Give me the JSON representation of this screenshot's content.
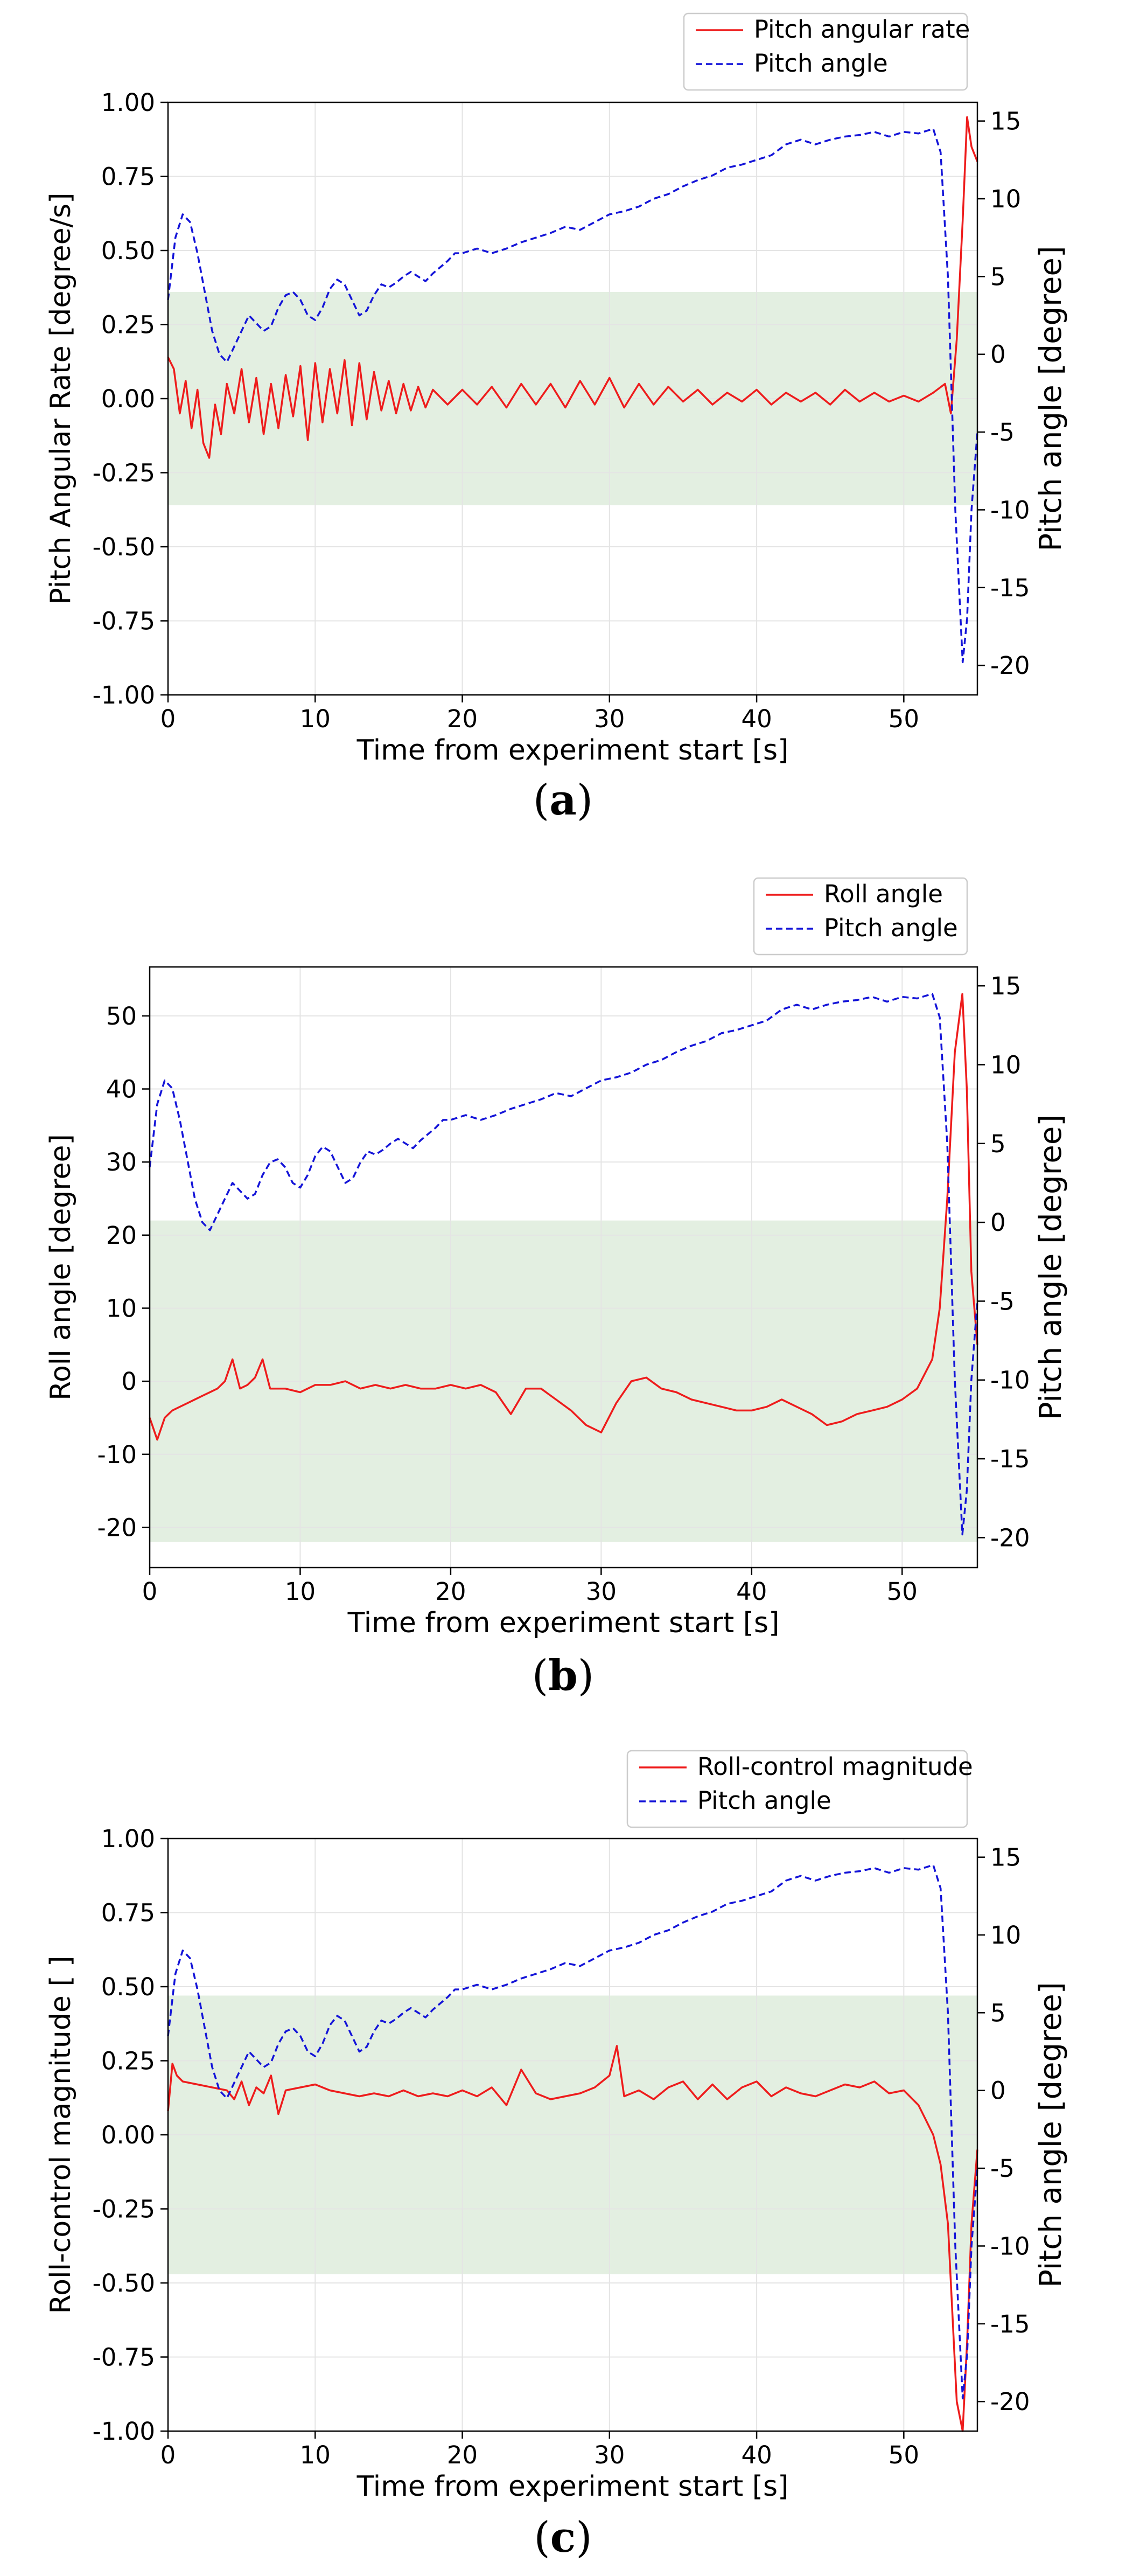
{
  "figure": {
    "captions": [
      {
        "open": "(",
        "letter": "a",
        "close": ")"
      },
      {
        "open": "(",
        "letter": "b",
        "close": ")"
      },
      {
        "open": "(",
        "letter": "c",
        "close": ")"
      }
    ]
  },
  "colors": {
    "primary": "#ee1c1c",
    "pitch": "#1414d8",
    "band": "#e3efe1",
    "grid": "#e4e4e4"
  },
  "chart_data": [
    {
      "type": "line",
      "xlabel": "Time from experiment start [s]",
      "ylabel": "Pitch Angular Rate [degree/s]",
      "y2label": "Pitch angle [degree]",
      "xlim": [
        0,
        55
      ],
      "ylim": [
        -1.0,
        1.0
      ],
      "y2lim": [
        -21.9,
        16.2
      ],
      "xticks": [
        0,
        10,
        20,
        30,
        40,
        50
      ],
      "yticks": [
        -1.0,
        -0.75,
        -0.5,
        -0.25,
        0.0,
        0.25,
        0.5,
        0.75,
        1.0
      ],
      "y2ticks": [
        -20,
        -15,
        -10,
        -5,
        0,
        5,
        10,
        15
      ],
      "tick_decimals": 2,
      "band": [
        -0.36,
        0.36
      ],
      "legend": [
        "Pitch angular rate",
        "Pitch angle"
      ],
      "legend_position": "top-right",
      "primary_series": {
        "name": "Pitch angular rate",
        "x": [
          0,
          0.4,
          0.8,
          1.2,
          1.6,
          2.0,
          2.4,
          2.8,
          3.2,
          3.6,
          4.0,
          4.5,
          5.0,
          5.5,
          6.0,
          6.5,
          7.0,
          7.5,
          8.0,
          8.5,
          9.0,
          9.5,
          10.0,
          10.5,
          11.0,
          11.5,
          12.0,
          12.5,
          13.0,
          13.5,
          14.0,
          14.5,
          15.0,
          15.5,
          16.0,
          16.5,
          17.0,
          17.5,
          18.0,
          19.0,
          20.0,
          21.0,
          22.0,
          23.0,
          24.0,
          25.0,
          26.0,
          27.0,
          28.0,
          29.0,
          30.0,
          31.0,
          32.0,
          33.0,
          34.0,
          35.0,
          36.0,
          37.0,
          38.0,
          39.0,
          40.0,
          41.0,
          42.0,
          43.0,
          44.0,
          45.0,
          46.0,
          47.0,
          48.0,
          49.0,
          50.0,
          51.0,
          52.0,
          52.8,
          53.2,
          53.6,
          54.0,
          54.3,
          54.6,
          55.0
        ],
        "y": [
          0.14,
          0.1,
          -0.05,
          0.06,
          -0.1,
          0.03,
          -0.15,
          -0.2,
          -0.02,
          -0.12,
          0.05,
          -0.05,
          0.1,
          -0.08,
          0.07,
          -0.12,
          0.05,
          -0.1,
          0.08,
          -0.06,
          0.11,
          -0.14,
          0.12,
          -0.08,
          0.1,
          -0.05,
          0.13,
          -0.09,
          0.12,
          -0.07,
          0.09,
          -0.04,
          0.06,
          -0.05,
          0.05,
          -0.04,
          0.04,
          -0.03,
          0.03,
          -0.02,
          0.03,
          -0.02,
          0.04,
          -0.03,
          0.05,
          -0.02,
          0.05,
          -0.03,
          0.06,
          -0.02,
          0.07,
          -0.03,
          0.05,
          -0.02,
          0.04,
          -0.01,
          0.03,
          -0.02,
          0.02,
          -0.01,
          0.03,
          -0.02,
          0.02,
          -0.01,
          0.02,
          -0.02,
          0.03,
          -0.01,
          0.02,
          -0.01,
          0.01,
          -0.01,
          0.02,
          0.05,
          -0.05,
          0.2,
          0.6,
          0.95,
          0.85,
          0.8
        ]
      },
      "pitch_series": {
        "name": "Pitch angle",
        "x": [
          0,
          0.5,
          1.0,
          1.5,
          2.0,
          2.5,
          3.0,
          3.5,
          4.0,
          4.5,
          5.0,
          5.5,
          6.0,
          6.5,
          7.0,
          7.5,
          8.0,
          8.5,
          9.0,
          9.5,
          10.0,
          10.5,
          11.0,
          11.5,
          12.0,
          12.5,
          13.0,
          13.5,
          14.0,
          14.5,
          15.0,
          15.5,
          16.0,
          16.5,
          17.0,
          17.5,
          18.0,
          18.5,
          19.0,
          19.5,
          20.0,
          21.0,
          22.0,
          23.0,
          24.0,
          25.0,
          26.0,
          27.0,
          28.0,
          29.0,
          30.0,
          31.0,
          32.0,
          33.0,
          34.0,
          35.0,
          36.0,
          37.0,
          38.0,
          39.0,
          40.0,
          41.0,
          42.0,
          43.0,
          44.0,
          45.0,
          46.0,
          47.0,
          48.0,
          49.0,
          50.0,
          51.0,
          52.0,
          52.5,
          53.0,
          53.5,
          54.0,
          54.3,
          54.6,
          55.0
        ],
        "y": [
          3.5,
          7.5,
          9.0,
          8.5,
          6.5,
          4.0,
          1.5,
          0.0,
          -0.5,
          0.5,
          1.5,
          2.5,
          2.0,
          1.5,
          1.8,
          3.0,
          3.8,
          4.0,
          3.5,
          2.5,
          2.2,
          3.0,
          4.2,
          4.8,
          4.5,
          3.5,
          2.5,
          2.8,
          3.8,
          4.5,
          4.3,
          4.6,
          5.0,
          5.3,
          5.0,
          4.7,
          5.2,
          5.6,
          6.0,
          6.5,
          6.5,
          6.8,
          6.5,
          6.8,
          7.2,
          7.5,
          7.8,
          8.2,
          8.0,
          8.5,
          9.0,
          9.2,
          9.5,
          10.0,
          10.3,
          10.8,
          11.2,
          11.5,
          12.0,
          12.2,
          12.5,
          12.8,
          13.5,
          13.8,
          13.5,
          13.8,
          14.0,
          14.1,
          14.3,
          14.0,
          14.3,
          14.2,
          14.5,
          13.0,
          5.0,
          -10.0,
          -19.8,
          -17.0,
          -10.0,
          -5.0
        ]
      }
    },
    {
      "type": "line",
      "xlabel": "Time from experiment start [s]",
      "ylabel": "Roll angle [degree]",
      "y2label": "Pitch angle [degree]",
      "xlim": [
        0,
        55
      ],
      "ylim": [
        -25.5,
        56.7
      ],
      "y2lim": [
        -21.9,
        16.2
      ],
      "xticks": [
        0,
        10,
        20,
        30,
        40,
        50
      ],
      "yticks": [
        -20,
        -10,
        0,
        10,
        20,
        30,
        40,
        50
      ],
      "y2ticks": [
        -20,
        -15,
        -10,
        -5,
        0,
        5,
        10,
        15
      ],
      "tick_decimals": 0,
      "band": [
        -22,
        22
      ],
      "legend": [
        "Roll angle",
        "Pitch angle"
      ],
      "legend_position": "top-right",
      "primary_series": {
        "name": "Roll angle",
        "x": [
          0,
          0.5,
          1.0,
          1.5,
          2.0,
          2.5,
          3.0,
          3.5,
          4.0,
          4.5,
          5.0,
          5.5,
          6.0,
          6.5,
          7.0,
          7.5,
          8.0,
          9.0,
          10.0,
          11.0,
          12.0,
          13.0,
          14.0,
          15.0,
          16.0,
          17.0,
          18.0,
          19.0,
          20.0,
          21.0,
          22.0,
          23.0,
          24.0,
          25.0,
          26.0,
          27.0,
          28.0,
          29.0,
          30.0,
          31.0,
          32.0,
          33.0,
          34.0,
          35.0,
          36.0,
          37.0,
          38.0,
          39.0,
          40.0,
          41.0,
          42.0,
          43.0,
          44.0,
          45.0,
          46.0,
          47.0,
          48.0,
          49.0,
          50.0,
          51.0,
          52.0,
          52.5,
          53.0,
          53.5,
          54.0,
          54.3,
          54.6,
          55.0
        ],
        "y": [
          -5.0,
          -8.0,
          -5.0,
          -4.0,
          -3.5,
          -3.0,
          -2.5,
          -2.0,
          -1.5,
          -1.0,
          0.0,
          3.0,
          -1.0,
          -0.5,
          0.5,
          3.0,
          -1.0,
          -1.0,
          -1.5,
          -0.5,
          -0.5,
          0.0,
          -1.0,
          -0.5,
          -1.0,
          -0.5,
          -1.0,
          -1.0,
          -0.5,
          -1.0,
          -0.5,
          -1.5,
          -4.5,
          -1.0,
          -1.0,
          -2.5,
          -4.0,
          -6.0,
          -7.0,
          -3.0,
          0.0,
          0.5,
          -1.0,
          -1.5,
          -2.5,
          -3.0,
          -3.5,
          -4.0,
          -4.0,
          -3.5,
          -2.5,
          -3.5,
          -4.5,
          -6.0,
          -5.5,
          -4.5,
          -4.0,
          -3.5,
          -2.5,
          -1.0,
          3.0,
          10.0,
          25.0,
          45.0,
          53.0,
          40.0,
          15.0,
          5.0
        ]
      },
      "pitch_series": {
        "name": "Pitch angle",
        "x": [
          0,
          0.5,
          1.0,
          1.5,
          2.0,
          2.5,
          3.0,
          3.5,
          4.0,
          4.5,
          5.0,
          5.5,
          6.0,
          6.5,
          7.0,
          7.5,
          8.0,
          8.5,
          9.0,
          9.5,
          10.0,
          10.5,
          11.0,
          11.5,
          12.0,
          12.5,
          13.0,
          13.5,
          14.0,
          14.5,
          15.0,
          15.5,
          16.0,
          16.5,
          17.0,
          17.5,
          18.0,
          18.5,
          19.0,
          19.5,
          20.0,
          21.0,
          22.0,
          23.0,
          24.0,
          25.0,
          26.0,
          27.0,
          28.0,
          29.0,
          30.0,
          31.0,
          32.0,
          33.0,
          34.0,
          35.0,
          36.0,
          37.0,
          38.0,
          39.0,
          40.0,
          41.0,
          42.0,
          43.0,
          44.0,
          45.0,
          46.0,
          47.0,
          48.0,
          49.0,
          50.0,
          51.0,
          52.0,
          52.5,
          53.0,
          53.5,
          54.0,
          54.3,
          54.6,
          55.0
        ],
        "y": [
          3.5,
          7.5,
          9.0,
          8.5,
          6.5,
          4.0,
          1.5,
          0.0,
          -0.5,
          0.5,
          1.5,
          2.5,
          2.0,
          1.5,
          1.8,
          3.0,
          3.8,
          4.0,
          3.5,
          2.5,
          2.2,
          3.0,
          4.2,
          4.8,
          4.5,
          3.5,
          2.5,
          2.8,
          3.8,
          4.5,
          4.3,
          4.6,
          5.0,
          5.3,
          5.0,
          4.7,
          5.2,
          5.6,
          6.0,
          6.5,
          6.5,
          6.8,
          6.5,
          6.8,
          7.2,
          7.5,
          7.8,
          8.2,
          8.0,
          8.5,
          9.0,
          9.2,
          9.5,
          10.0,
          10.3,
          10.8,
          11.2,
          11.5,
          12.0,
          12.2,
          12.5,
          12.8,
          13.5,
          13.8,
          13.5,
          13.8,
          14.0,
          14.1,
          14.3,
          14.0,
          14.3,
          14.2,
          14.5,
          13.0,
          5.0,
          -10.0,
          -19.8,
          -17.0,
          -10.0,
          -5.0
        ]
      }
    },
    {
      "type": "line",
      "xlabel": "Time from experiment start [s]",
      "ylabel": "Roll-control magnitude [ ]",
      "y2label": "Pitch angle [degree]",
      "xlim": [
        0,
        55
      ],
      "ylim": [
        -1.0,
        1.0
      ],
      "y2lim": [
        -21.9,
        16.2
      ],
      "xticks": [
        0,
        10,
        20,
        30,
        40,
        50
      ],
      "yticks": [
        -1.0,
        -0.75,
        -0.5,
        -0.25,
        0.0,
        0.25,
        0.5,
        0.75,
        1.0
      ],
      "y2ticks": [
        -20,
        -15,
        -10,
        -5,
        0,
        5,
        10,
        15
      ],
      "tick_decimals": 2,
      "band": [
        -0.47,
        0.47
      ],
      "legend": [
        "Roll-control magnitude",
        "Pitch angle"
      ],
      "legend_position": "top-right",
      "primary_series": {
        "name": "Roll-control magnitude",
        "x": [
          0,
          0.3,
          0.6,
          1.0,
          2.0,
          3.0,
          4.0,
          4.5,
          5.0,
          5.5,
          6.0,
          6.5,
          7.0,
          7.5,
          8.0,
          9.0,
          10.0,
          11.0,
          12.0,
          13.0,
          14.0,
          15.0,
          16.0,
          17.0,
          18.0,
          19.0,
          20.0,
          21.0,
          22.0,
          23.0,
          24.0,
          25.0,
          26.0,
          27.0,
          28.0,
          29.0,
          30.0,
          30.5,
          31.0,
          32.0,
          33.0,
          34.0,
          35.0,
          36.0,
          37.0,
          38.0,
          39.0,
          40.0,
          41.0,
          42.0,
          43.0,
          44.0,
          45.0,
          46.0,
          47.0,
          48.0,
          49.0,
          50.0,
          51.0,
          51.5,
          52.0,
          52.5,
          53.0,
          53.3,
          53.6,
          54.0,
          54.3,
          54.6,
          55.0
        ],
        "y": [
          0.08,
          0.24,
          0.2,
          0.18,
          0.17,
          0.16,
          0.15,
          0.12,
          0.18,
          0.1,
          0.16,
          0.14,
          0.2,
          0.07,
          0.15,
          0.16,
          0.17,
          0.15,
          0.14,
          0.13,
          0.14,
          0.13,
          0.15,
          0.13,
          0.14,
          0.13,
          0.15,
          0.13,
          0.16,
          0.1,
          0.22,
          0.14,
          0.12,
          0.13,
          0.14,
          0.16,
          0.2,
          0.3,
          0.13,
          0.15,
          0.12,
          0.16,
          0.18,
          0.12,
          0.17,
          0.12,
          0.16,
          0.18,
          0.13,
          0.16,
          0.14,
          0.13,
          0.15,
          0.17,
          0.16,
          0.18,
          0.14,
          0.15,
          0.1,
          0.05,
          0.0,
          -0.1,
          -0.3,
          -0.6,
          -0.9,
          -1.0,
          -0.7,
          -0.3,
          -0.05
        ]
      },
      "pitch_series": {
        "name": "Pitch angle",
        "x": [
          0,
          0.5,
          1.0,
          1.5,
          2.0,
          2.5,
          3.0,
          3.5,
          4.0,
          4.5,
          5.0,
          5.5,
          6.0,
          6.5,
          7.0,
          7.5,
          8.0,
          8.5,
          9.0,
          9.5,
          10.0,
          10.5,
          11.0,
          11.5,
          12.0,
          12.5,
          13.0,
          13.5,
          14.0,
          14.5,
          15.0,
          15.5,
          16.0,
          16.5,
          17.0,
          17.5,
          18.0,
          18.5,
          19.0,
          19.5,
          20.0,
          21.0,
          22.0,
          23.0,
          24.0,
          25.0,
          26.0,
          27.0,
          28.0,
          29.0,
          30.0,
          31.0,
          32.0,
          33.0,
          34.0,
          35.0,
          36.0,
          37.0,
          38.0,
          39.0,
          40.0,
          41.0,
          42.0,
          43.0,
          44.0,
          45.0,
          46.0,
          47.0,
          48.0,
          49.0,
          50.0,
          51.0,
          52.0,
          52.5,
          53.0,
          53.5,
          54.0,
          54.3,
          54.6,
          55.0
        ],
        "y": [
          3.5,
          7.5,
          9.0,
          8.5,
          6.5,
          4.0,
          1.5,
          0.0,
          -0.5,
          0.5,
          1.5,
          2.5,
          2.0,
          1.5,
          1.8,
          3.0,
          3.8,
          4.0,
          3.5,
          2.5,
          2.2,
          3.0,
          4.2,
          4.8,
          4.5,
          3.5,
          2.5,
          2.8,
          3.8,
          4.5,
          4.3,
          4.6,
          5.0,
          5.3,
          5.0,
          4.7,
          5.2,
          5.6,
          6.0,
          6.5,
          6.5,
          6.8,
          6.5,
          6.8,
          7.2,
          7.5,
          7.8,
          8.2,
          8.0,
          8.5,
          9.0,
          9.2,
          9.5,
          10.0,
          10.3,
          10.8,
          11.2,
          11.5,
          12.0,
          12.2,
          12.5,
          12.8,
          13.5,
          13.8,
          13.5,
          13.8,
          14.0,
          14.1,
          14.3,
          14.0,
          14.3,
          14.2,
          14.5,
          13.0,
          5.0,
          -10.0,
          -19.8,
          -17.0,
          -10.0,
          -5.0
        ]
      }
    }
  ]
}
